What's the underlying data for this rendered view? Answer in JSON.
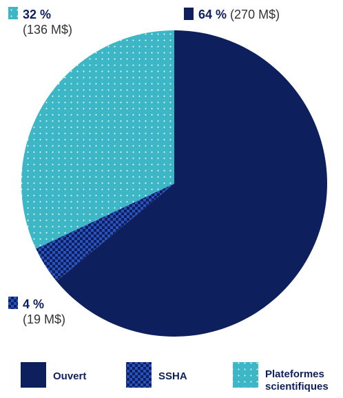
{
  "chart_data": {
    "type": "pie",
    "categories": [
      "Ouvert",
      "SSHA",
      "Plateformes scientifiques"
    ],
    "values": [
      64,
      4,
      32
    ],
    "value_labels": [
      "64 %",
      "4 %",
      "32 %"
    ],
    "amount_labels": [
      "(270 M$)",
      "(19 M$)",
      "(136 M$)"
    ],
    "colors": [
      "#0d1f5c",
      "#1f42a8",
      "#3db7c6"
    ]
  }
}
